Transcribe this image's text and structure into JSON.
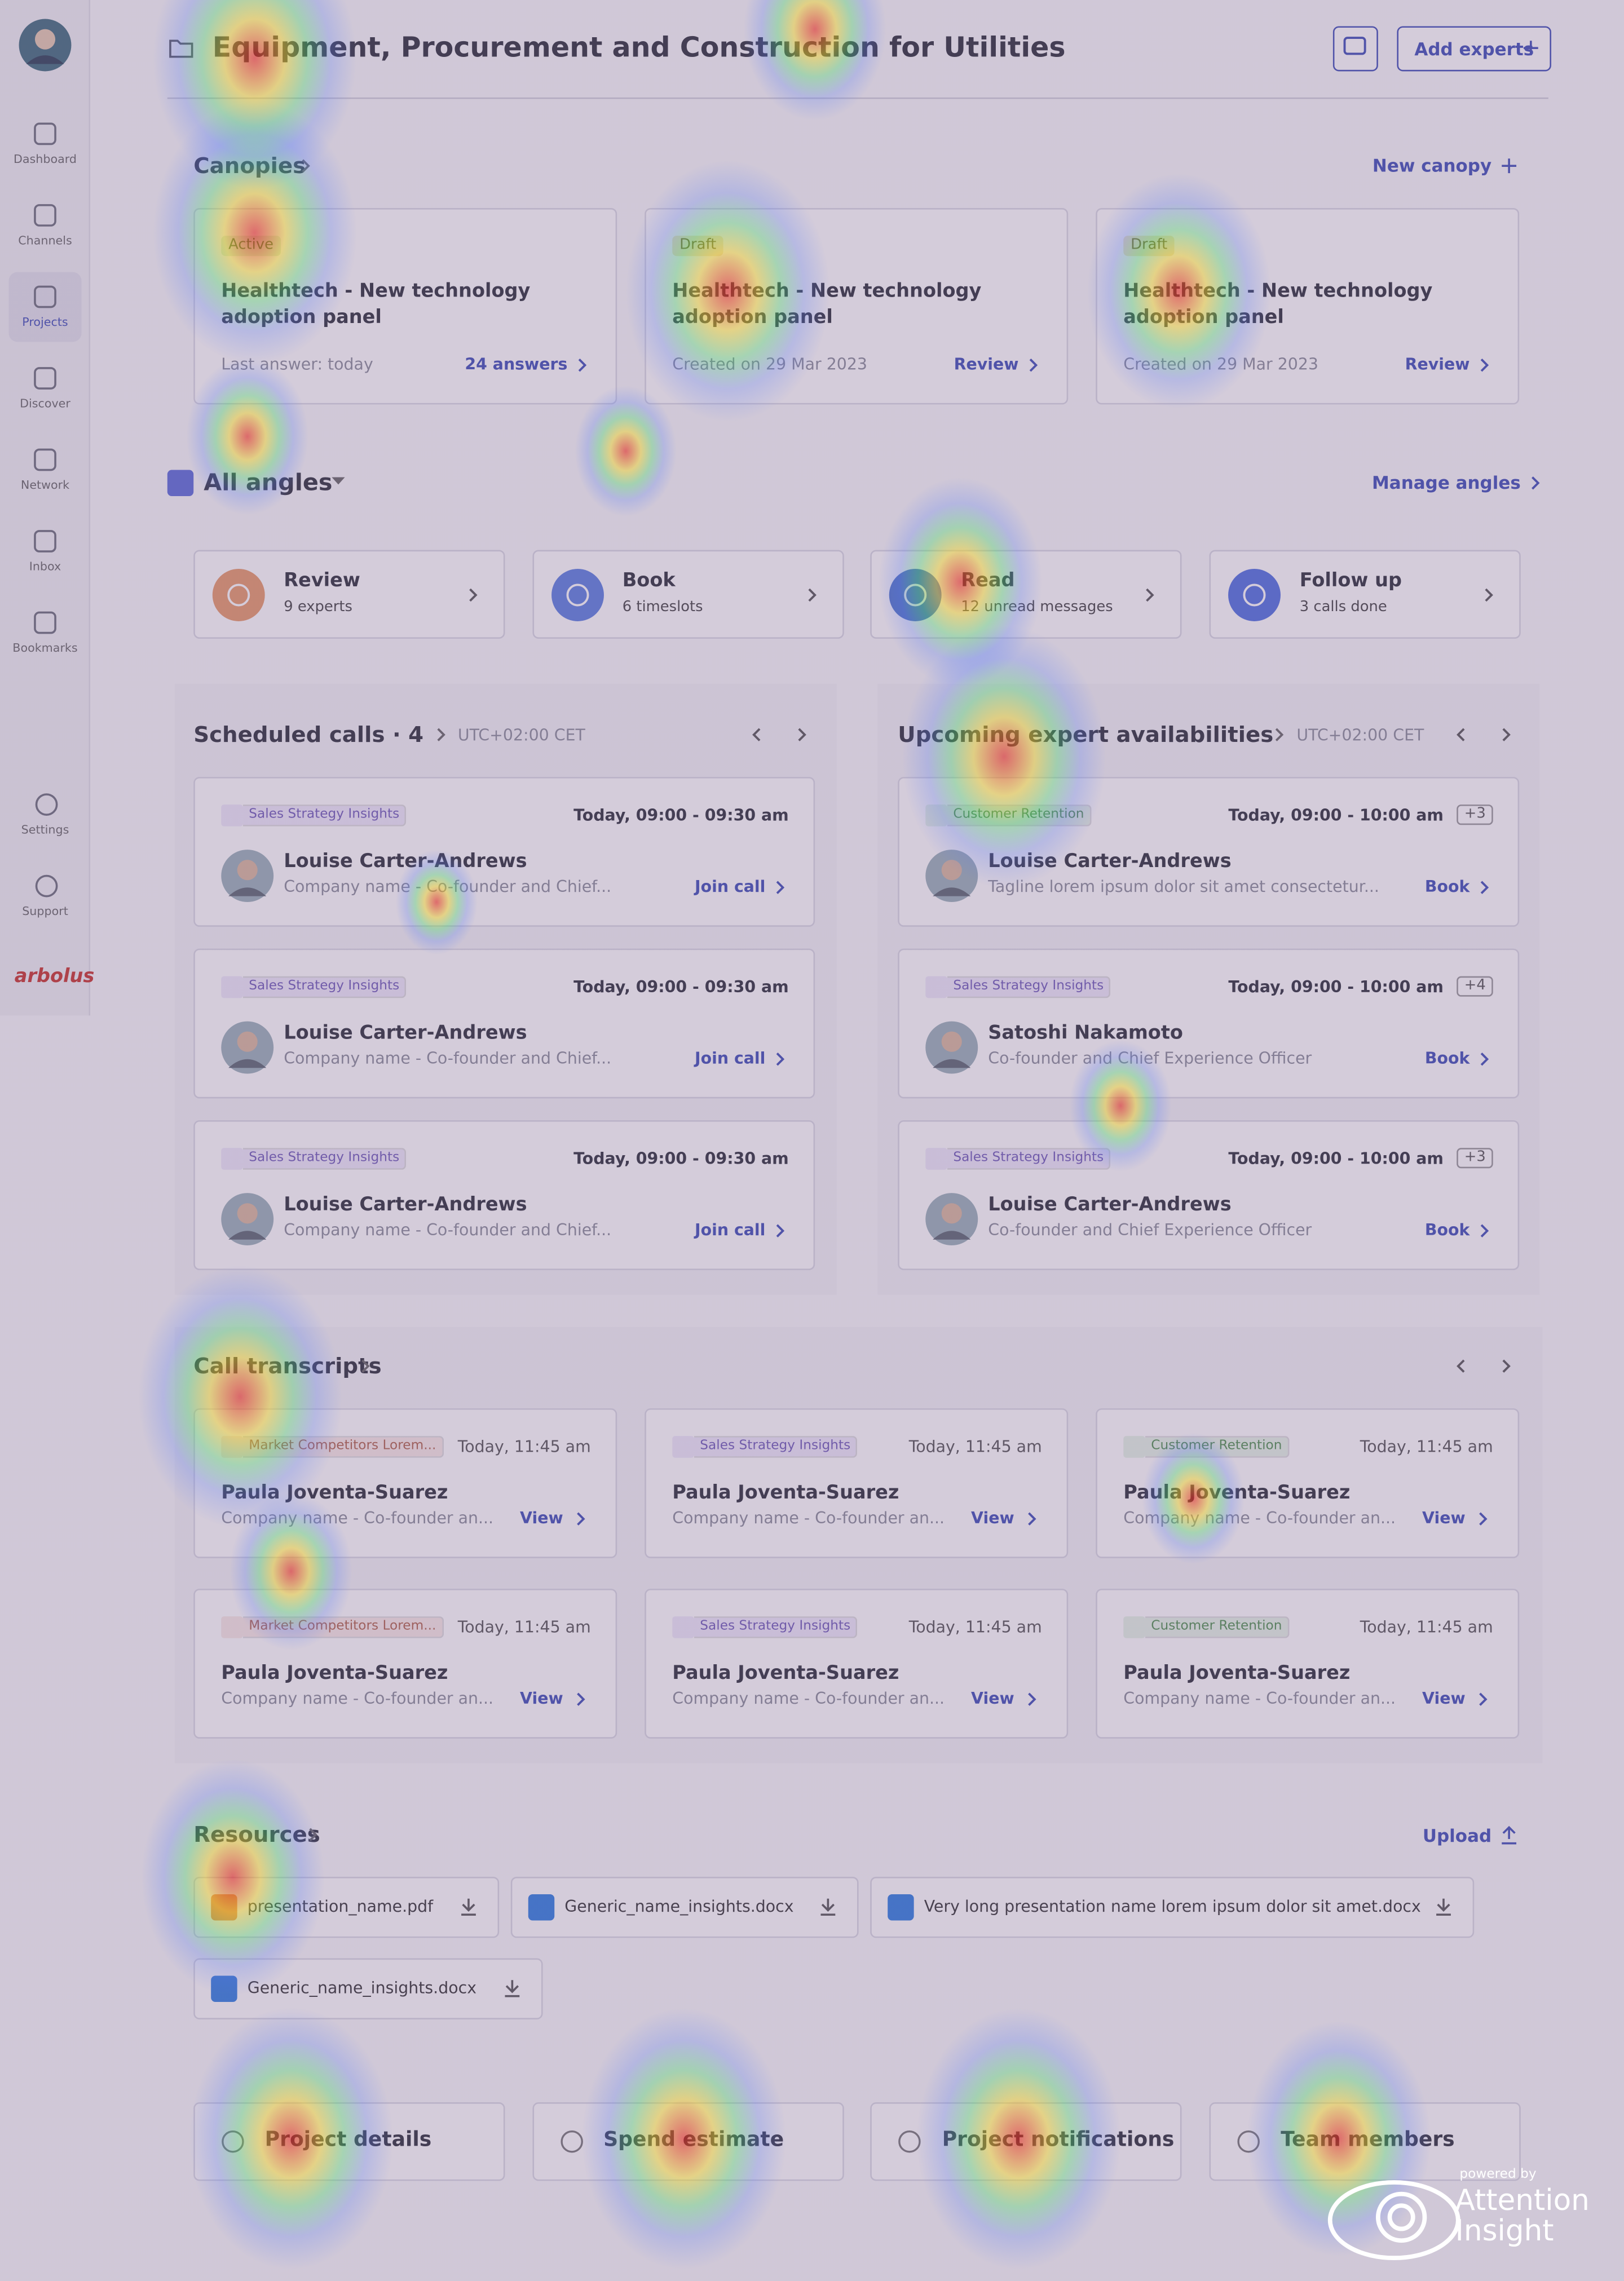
{
  "sidebar": {
    "items": [
      "Dashboard",
      "Channels",
      "Projects",
      "Discover",
      "Network",
      "Inbox",
      "Bookmarks"
    ],
    "bottom": [
      "Settings",
      "Support"
    ],
    "logo": "arbolus"
  },
  "header": {
    "title": "Equipment, Procurement and Construction for Utilities",
    "add_experts": "Add experts"
  },
  "canopies": {
    "title": "Canopies",
    "new": "New canopy",
    "cards": [
      {
        "status": "Active",
        "title": "Healthtech - New technology adoption panel",
        "meta": "Last answer: today",
        "action": "24 answers"
      },
      {
        "status": "Draft",
        "title": "Healthtech - New technology adoption panel",
        "meta": "Created on 29 Mar 2023",
        "action": "Review"
      },
      {
        "status": "Draft",
        "title": "Healthtech - New technology adoption panel",
        "meta": "Created on 29 Mar 2023",
        "action": "Review"
      }
    ]
  },
  "angles": {
    "title": "All angles",
    "manage": "Manage angles",
    "cards": [
      {
        "title": "Review",
        "sub": "9 experts"
      },
      {
        "title": "Book",
        "sub": "6 timeslots"
      },
      {
        "title": "Read",
        "sub": "12 unread messages"
      },
      {
        "title": "Follow up",
        "sub": "3 calls done"
      }
    ]
  },
  "scheduled_calls": {
    "title": "Scheduled calls · 4",
    "timezone": "UTC+02:00 CET",
    "items": [
      {
        "tag": "Sales Strategy Insights",
        "time": "Today, 09:00 - 09:30 am",
        "name": "Louise Carter-Andrews",
        "subtitle": "Company name - Co-founder and Chief...",
        "action": "Join call"
      },
      {
        "tag": "Sales Strategy Insights",
        "time": "Today, 09:00 - 09:30 am",
        "name": "Louise Carter-Andrews",
        "subtitle": "Company name - Co-founder and Chief...",
        "action": "Join call"
      },
      {
        "tag": "Sales Strategy Insights",
        "time": "Today, 09:00 - 09:30 am",
        "name": "Louise Carter-Andrews",
        "subtitle": "Company name - Co-founder and Chief...",
        "action": "Join call"
      }
    ]
  },
  "availabilities": {
    "title": "Upcoming expert availabilities",
    "timezone": "UTC+02:00 CET",
    "items": [
      {
        "tag": "Customer Retention",
        "time": "Today, 09:00 - 10:00 am",
        "extra": "+3",
        "name": "Louise Carter-Andrews",
        "subtitle": "Tagline lorem ipsum dolor sit amet  consectetur...",
        "action": "Book"
      },
      {
        "tag": "Sales Strategy Insights",
        "time": "Today, 09:00 - 10:00 am",
        "extra": "+4",
        "name": "Satoshi Nakamoto",
        "subtitle": "Co-founder and Chief Experience Officer",
        "action": "Book"
      },
      {
        "tag": "Sales Strategy Insights",
        "time": "Today, 09:00 - 10:00 am",
        "extra": "+3",
        "name": "Louise Carter-Andrews",
        "subtitle": "Co-founder and Chief Experience Officer",
        "action": "Book"
      }
    ]
  },
  "transcripts": {
    "title": "Call transcripts",
    "items": [
      {
        "tag": "Market Competitors Lorem...",
        "time": "Today, 11:45 am",
        "name": "Paula Joventa-Suarez",
        "subtitle": "Company name - Co-founder an...",
        "action": "View"
      },
      {
        "tag": "Sales Strategy Insights",
        "time": "Today, 11:45 am",
        "name": "Paula Joventa-Suarez",
        "subtitle": "Company name - Co-founder an...",
        "action": "View"
      },
      {
        "tag": "Customer Retention",
        "time": "Today, 11:45 am",
        "name": "Paula Joventa-Suarez",
        "subtitle": "Company name - Co-founder an...",
        "action": "View"
      },
      {
        "tag": "Market Competitors Lorem...",
        "time": "Today, 11:45 am",
        "name": "Paula Joventa-Suarez",
        "subtitle": "Company name - Co-founder an...",
        "action": "View"
      },
      {
        "tag": "Sales Strategy Insights",
        "time": "Today, 11:45 am",
        "name": "Paula Joventa-Suarez",
        "subtitle": "Company name - Co-founder an...",
        "action": "View"
      },
      {
        "tag": "Customer Retention",
        "time": "Today, 11:45 am",
        "name": "Paula Joventa-Suarez",
        "subtitle": "Company name - Co-founder an...",
        "action": "View"
      }
    ]
  },
  "resources": {
    "title": "Resources",
    "upload": "Upload",
    "files": [
      "presentation_name.pdf",
      "Generic_name_insights.docx",
      "Very long presentation name lorem ipsum dolor sit amet.docx",
      "Generic_name_insights.docx"
    ]
  },
  "footer": {
    "cards": [
      "Project details",
      "Spend estimate",
      "Project notifications",
      "Team members"
    ]
  },
  "watermark": {
    "powered_by": "powered by",
    "brand": "Attention Insight"
  }
}
